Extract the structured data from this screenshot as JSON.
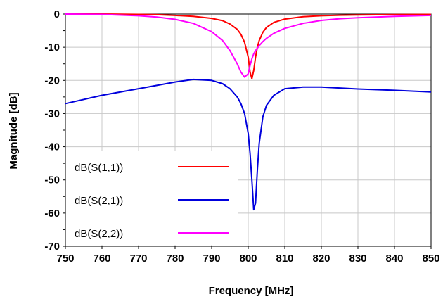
{
  "chart_data": {
    "type": "line",
    "title": "",
    "xlabel": "Frequency [MHz]",
    "ylabel": "Magnitude [dB]",
    "xlim": [
      750,
      850
    ],
    "ylim": [
      -70,
      0
    ],
    "xticks": [
      750,
      760,
      770,
      780,
      790,
      800,
      810,
      820,
      830,
      840,
      850
    ],
    "yticks": [
      0,
      -10,
      -20,
      -30,
      -40,
      -50,
      -60,
      -70
    ],
    "grid": true,
    "legend_position": "bottom-left",
    "x": [
      750,
      760,
      770,
      775,
      780,
      785,
      790,
      793,
      795,
      797,
      798,
      799,
      800,
      800.5,
      801,
      801.5,
      802,
      802.5,
      803,
      804,
      805,
      807,
      810,
      815,
      820,
      825,
      830,
      840,
      850
    ],
    "series": [
      {
        "name": "dB(S(1,1))",
        "color": "#ff0000",
        "values": [
          0,
          0,
          -0.1,
          -0.2,
          -0.4,
          -0.7,
          -1.3,
          -2.0,
          -3.0,
          -4.6,
          -6.1,
          -8.5,
          -13,
          -17.5,
          -19.5,
          -17,
          -13,
          -10,
          -8,
          -5.5,
          -4.0,
          -2.5,
          -1.5,
          -0.8,
          -0.5,
          -0.35,
          -0.25,
          -0.15,
          -0.1
        ]
      },
      {
        "name": "dB(S(2,1))",
        "color": "#0000dd",
        "values": [
          -27,
          -24.5,
          -22.5,
          -21.5,
          -20.5,
          -19.7,
          -20,
          -21,
          -22.5,
          -25,
          -27,
          -30,
          -36,
          -42,
          -50,
          -59,
          -57,
          -47,
          -39,
          -31,
          -27.5,
          -24.5,
          -22.5,
          -22,
          -22,
          -22.3,
          -22.6,
          -23,
          -23.5
        ]
      },
      {
        "name": "dB(S(2,2))",
        "color": "#ff00ff",
        "values": [
          0,
          -0.1,
          -0.5,
          -0.9,
          -1.6,
          -2.8,
          -5.3,
          -8,
          -11,
          -15,
          -17.5,
          -19,
          -18,
          -15.5,
          -13.5,
          -12,
          -11,
          -10.3,
          -9.5,
          -8.3,
          -7.3,
          -5.8,
          -4.3,
          -2.8,
          -1.9,
          -1.4,
          -1.1,
          -0.7,
          -0.4
        ]
      }
    ]
  }
}
